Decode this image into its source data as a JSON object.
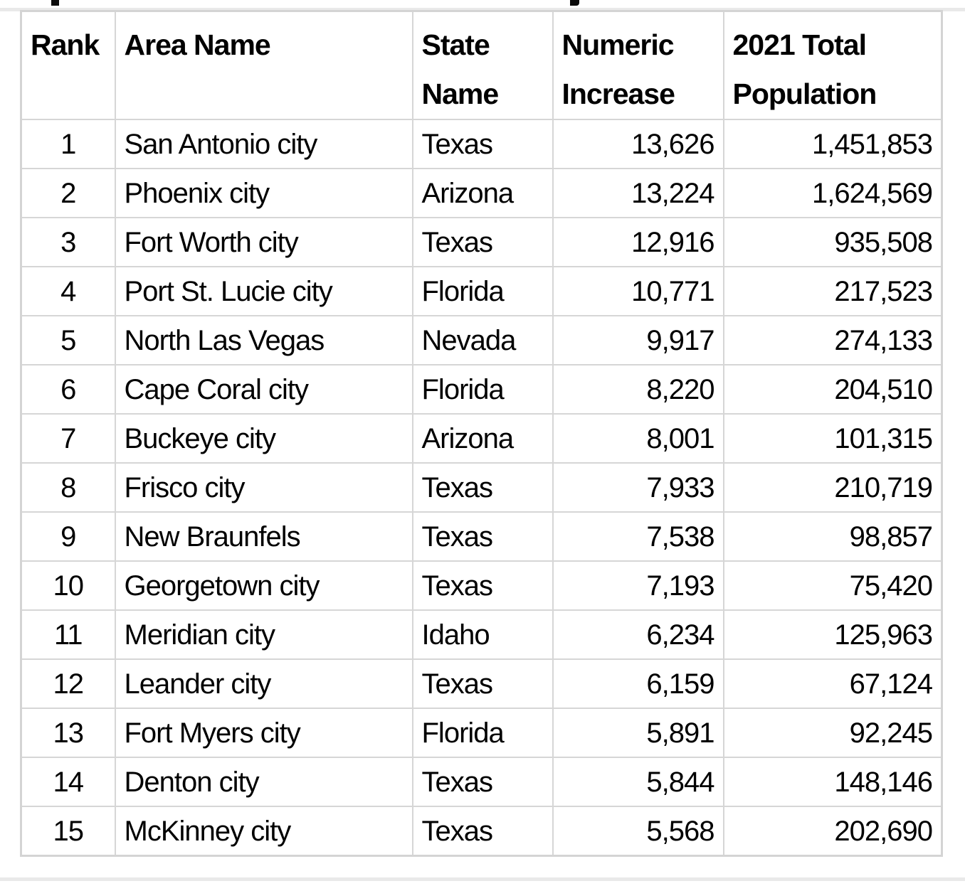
{
  "table": {
    "columns": [
      {
        "key": "rank",
        "header_lines": [
          "Rank"
        ],
        "align": "center",
        "header_align": "left"
      },
      {
        "key": "area",
        "header_lines": [
          "Area Name"
        ],
        "align": "left",
        "header_align": "left"
      },
      {
        "key": "state",
        "header_lines": [
          "State",
          "Name"
        ],
        "align": "left",
        "header_align": "left"
      },
      {
        "key": "increase",
        "header_lines": [
          "Numeric",
          "Increase"
        ],
        "align": "right",
        "header_align": "left"
      },
      {
        "key": "population",
        "header_lines": [
          "2021 Total",
          "Population"
        ],
        "align": "right",
        "header_align": "left"
      }
    ],
    "rows": [
      {
        "rank": "1",
        "area": "San Antonio city",
        "state": "Texas",
        "increase": "13,626",
        "population": "1,451,853"
      },
      {
        "rank": "2",
        "area": "Phoenix city",
        "state": "Arizona",
        "increase": "13,224",
        "population": "1,624,569"
      },
      {
        "rank": "3",
        "area": "Fort Worth city",
        "state": "Texas",
        "increase": "12,916",
        "population": "935,508"
      },
      {
        "rank": "4",
        "area": "Port St. Lucie city",
        "state": "Florida",
        "increase": "10,771",
        "population": "217,523"
      },
      {
        "rank": "5",
        "area": "North Las Vegas",
        "state": "Nevada",
        "increase": "9,917",
        "population": "274,133"
      },
      {
        "rank": "6",
        "area": "Cape Coral city",
        "state": "Florida",
        "increase": "8,220",
        "population": "204,510"
      },
      {
        "rank": "7",
        "area": "Buckeye city",
        "state": "Arizona",
        "increase": "8,001",
        "population": "101,315"
      },
      {
        "rank": "8",
        "area": "Frisco city",
        "state": "Texas",
        "increase": "7,933",
        "population": "210,719"
      },
      {
        "rank": "9",
        "area": "New Braunfels",
        "state": "Texas",
        "increase": "7,538",
        "population": "98,857"
      },
      {
        "rank": "10",
        "area": "Georgetown city",
        "state": "Texas",
        "increase": "7,193",
        "population": "75,420"
      },
      {
        "rank": "11",
        "area": "Meridian city",
        "state": "Idaho",
        "increase": "6,234",
        "population": "125,963"
      },
      {
        "rank": "12",
        "area": "Leander city",
        "state": "Texas",
        "increase": "6,159",
        "population": "67,124"
      },
      {
        "rank": "13",
        "area": "Fort Myers city",
        "state": "Florida",
        "increase": "5,891",
        "population": "92,245"
      },
      {
        "rank": "14",
        "area": "Denton city",
        "state": "Texas",
        "increase": "5,844",
        "population": "148,146"
      },
      {
        "rank": "15",
        "area": "McKinney city",
        "state": "Texas",
        "increase": "5,568",
        "population": "202,690"
      }
    ]
  },
  "colors": {
    "grid_border": "#d6d6d6",
    "outer_rule": "#e9e9e9",
    "text": "#000000",
    "cell_background": "#ffffff"
  }
}
